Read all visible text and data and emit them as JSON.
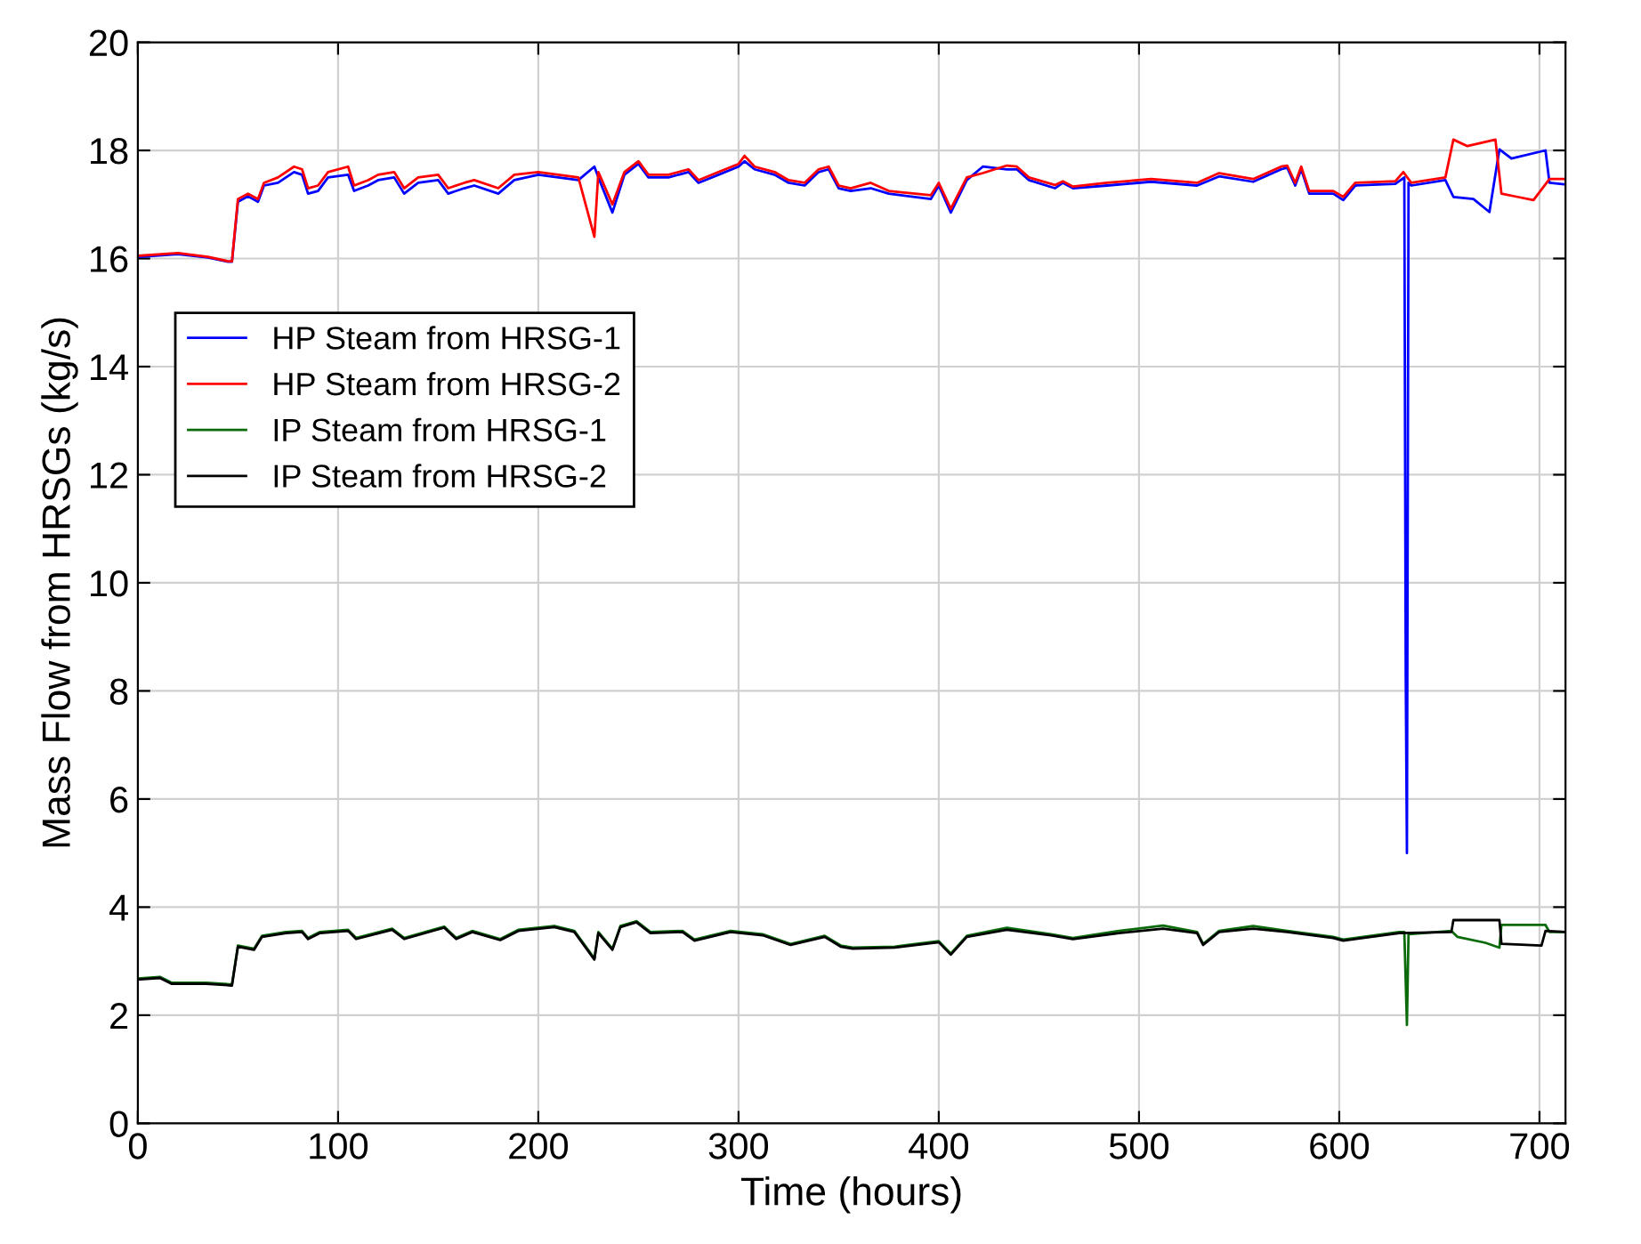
{
  "chart_data": {
    "type": "line",
    "xlabel": "Time (hours)",
    "ylabel": "Mass Flow from HRSGs (kg/s)",
    "xlim": [
      0,
      713
    ],
    "xticks": [
      0,
      100,
      200,
      300,
      400,
      500,
      600,
      700
    ],
    "ylim": [
      0,
      20
    ],
    "yticks": [
      0,
      2,
      4,
      6,
      8,
      10,
      12,
      14,
      16,
      18,
      20
    ],
    "grid": true,
    "legend": "left",
    "line_style": "solid",
    "marker": "none",
    "series": [
      {
        "name": "HP Steam from HRSG-1",
        "color": "#0000ff",
        "x": [
          0,
          20,
          35,
          45,
          47,
          50,
          55,
          60,
          63,
          70,
          78,
          82,
          85,
          90,
          95,
          105,
          108,
          115,
          120,
          128,
          133,
          140,
          150,
          155,
          163,
          168,
          180,
          188,
          200,
          210,
          220,
          228,
          230,
          237,
          243,
          250,
          255,
          265,
          275,
          280,
          290,
          300,
          303,
          308,
          318,
          325,
          333,
          340,
          345,
          350,
          356,
          366,
          375,
          396,
          400,
          406,
          414,
          422,
          434,
          439,
          445,
          458,
          462,
          467,
          484,
          506,
          529,
          540,
          557,
          571,
          574,
          578,
          581,
          585,
          597,
          602,
          608,
          628,
          632.5,
          633.2,
          633.8,
          634.6,
          636,
          653,
          657,
          667,
          675,
          680,
          686,
          703,
          705,
          713
        ],
        "values": [
          16.03,
          16.08,
          16.02,
          15.94,
          15.94,
          17.05,
          17.15,
          17.05,
          17.35,
          17.4,
          17.6,
          17.55,
          17.2,
          17.25,
          17.5,
          17.55,
          17.25,
          17.35,
          17.45,
          17.5,
          17.2,
          17.4,
          17.45,
          17.2,
          17.3,
          17.35,
          17.2,
          17.45,
          17.55,
          17.5,
          17.45,
          17.7,
          17.5,
          16.85,
          17.55,
          17.75,
          17.5,
          17.5,
          17.6,
          17.4,
          17.55,
          17.7,
          17.8,
          17.65,
          17.55,
          17.4,
          17.35,
          17.6,
          17.65,
          17.3,
          17.25,
          17.3,
          17.2,
          17.1,
          17.35,
          16.85,
          17.45,
          17.7,
          17.65,
          17.65,
          17.45,
          17.3,
          17.4,
          17.3,
          17.35,
          17.42,
          17.35,
          17.52,
          17.42,
          17.65,
          17.68,
          17.35,
          17.65,
          17.2,
          17.2,
          17.08,
          17.35,
          17.38,
          17.5,
          8.3,
          5.0,
          17.4,
          17.35,
          17.45,
          17.14,
          17.1,
          16.86,
          18.02,
          17.85,
          18.0,
          17.4,
          17.37
        ]
      },
      {
        "name": "HP Steam from HRSG-2",
        "color": "#ff0000",
        "x": [
          0,
          20,
          35,
          45,
          47,
          50,
          55,
          60,
          63,
          70,
          78,
          82,
          85,
          90,
          95,
          105,
          108,
          115,
          120,
          128,
          133,
          140,
          150,
          155,
          163,
          168,
          180,
          188,
          200,
          210,
          220,
          228,
          230,
          237,
          243,
          250,
          255,
          265,
          275,
          280,
          290,
          300,
          303,
          308,
          318,
          325,
          333,
          340,
          345,
          350,
          356,
          366,
          375,
          396,
          400,
          406,
          414,
          422,
          434,
          439,
          445,
          458,
          462,
          467,
          484,
          506,
          529,
          540,
          557,
          571,
          574,
          578,
          581,
          585,
          597,
          602,
          608,
          628,
          632,
          636,
          653,
          657,
          664,
          678,
          681,
          689,
          697,
          705,
          713
        ],
        "values": [
          16.05,
          16.1,
          16.03,
          15.95,
          15.95,
          17.1,
          17.2,
          17.1,
          17.4,
          17.5,
          17.7,
          17.65,
          17.3,
          17.35,
          17.6,
          17.7,
          17.35,
          17.45,
          17.55,
          17.6,
          17.3,
          17.5,
          17.55,
          17.3,
          17.4,
          17.45,
          17.3,
          17.55,
          17.6,
          17.55,
          17.5,
          16.4,
          17.6,
          17.0,
          17.6,
          17.8,
          17.55,
          17.55,
          17.65,
          17.45,
          17.6,
          17.75,
          17.9,
          17.7,
          17.6,
          17.45,
          17.4,
          17.65,
          17.7,
          17.35,
          17.3,
          17.4,
          17.25,
          17.17,
          17.4,
          16.92,
          17.5,
          17.58,
          17.72,
          17.7,
          17.5,
          17.36,
          17.43,
          17.33,
          17.4,
          17.47,
          17.4,
          17.58,
          17.47,
          17.7,
          17.72,
          17.4,
          17.7,
          17.25,
          17.25,
          17.14,
          17.4,
          17.43,
          17.6,
          17.4,
          17.5,
          18.2,
          18.08,
          18.2,
          17.2,
          17.14,
          17.08,
          17.47,
          17.47
        ]
      },
      {
        "name": "IP Steam from HRSG-1",
        "color": "#0b6b0b",
        "x": [
          0,
          11,
          17,
          34,
          47,
          50,
          58,
          62,
          74,
          82,
          85,
          91,
          105,
          109,
          127,
          133,
          153,
          159,
          167,
          181,
          190,
          208,
          218,
          228,
          230,
          237,
          241,
          249,
          256,
          272,
          278,
          296,
          312,
          326,
          343,
          351,
          357,
          378,
          400,
          406,
          414,
          434,
          456,
          467,
          490,
          512,
          529,
          532,
          540,
          557,
          574,
          597,
          602,
          630,
          632.5,
          633.8,
          634.6,
          656,
          659,
          673,
          680,
          681,
          703,
          705,
          713
        ],
        "values": [
          2.68,
          2.71,
          2.6,
          2.6,
          2.57,
          3.29,
          3.23,
          3.47,
          3.54,
          3.56,
          3.43,
          3.54,
          3.58,
          3.43,
          3.6,
          3.43,
          3.64,
          3.43,
          3.56,
          3.41,
          3.58,
          3.65,
          3.56,
          3.05,
          3.54,
          3.23,
          3.65,
          3.74,
          3.54,
          3.56,
          3.4,
          3.56,
          3.5,
          3.32,
          3.47,
          3.29,
          3.25,
          3.27,
          3.37,
          3.14,
          3.47,
          3.62,
          3.5,
          3.43,
          3.56,
          3.66,
          3.54,
          3.32,
          3.56,
          3.65,
          3.56,
          3.45,
          3.4,
          3.54,
          3.54,
          1.82,
          3.5,
          3.56,
          3.45,
          3.34,
          3.25,
          3.67,
          3.67,
          3.54,
          3.54
        ]
      },
      {
        "name": "IP Steam from HRSG-2",
        "color": "#000000",
        "x": [
          0,
          11,
          17,
          34,
          47,
          50,
          58,
          62,
          74,
          82,
          85,
          91,
          105,
          109,
          127,
          133,
          153,
          159,
          167,
          181,
          190,
          208,
          218,
          228,
          230,
          237,
          241,
          249,
          256,
          272,
          278,
          296,
          312,
          326,
          343,
          351,
          357,
          378,
          400,
          406,
          414,
          434,
          456,
          467,
          490,
          512,
          529,
          532,
          540,
          557,
          574,
          597,
          602,
          630,
          656,
          657,
          680,
          681,
          701,
          703,
          713
        ],
        "values": [
          2.66,
          2.69,
          2.58,
          2.58,
          2.55,
          3.27,
          3.21,
          3.45,
          3.52,
          3.54,
          3.41,
          3.52,
          3.56,
          3.41,
          3.58,
          3.41,
          3.62,
          3.41,
          3.54,
          3.39,
          3.56,
          3.63,
          3.54,
          3.03,
          3.52,
          3.21,
          3.63,
          3.72,
          3.52,
          3.54,
          3.38,
          3.54,
          3.48,
          3.3,
          3.45,
          3.27,
          3.23,
          3.25,
          3.35,
          3.12,
          3.45,
          3.58,
          3.48,
          3.41,
          3.52,
          3.6,
          3.52,
          3.3,
          3.54,
          3.6,
          3.54,
          3.43,
          3.38,
          3.52,
          3.54,
          3.76,
          3.76,
          3.32,
          3.29,
          3.56,
          3.54
        ]
      }
    ]
  }
}
